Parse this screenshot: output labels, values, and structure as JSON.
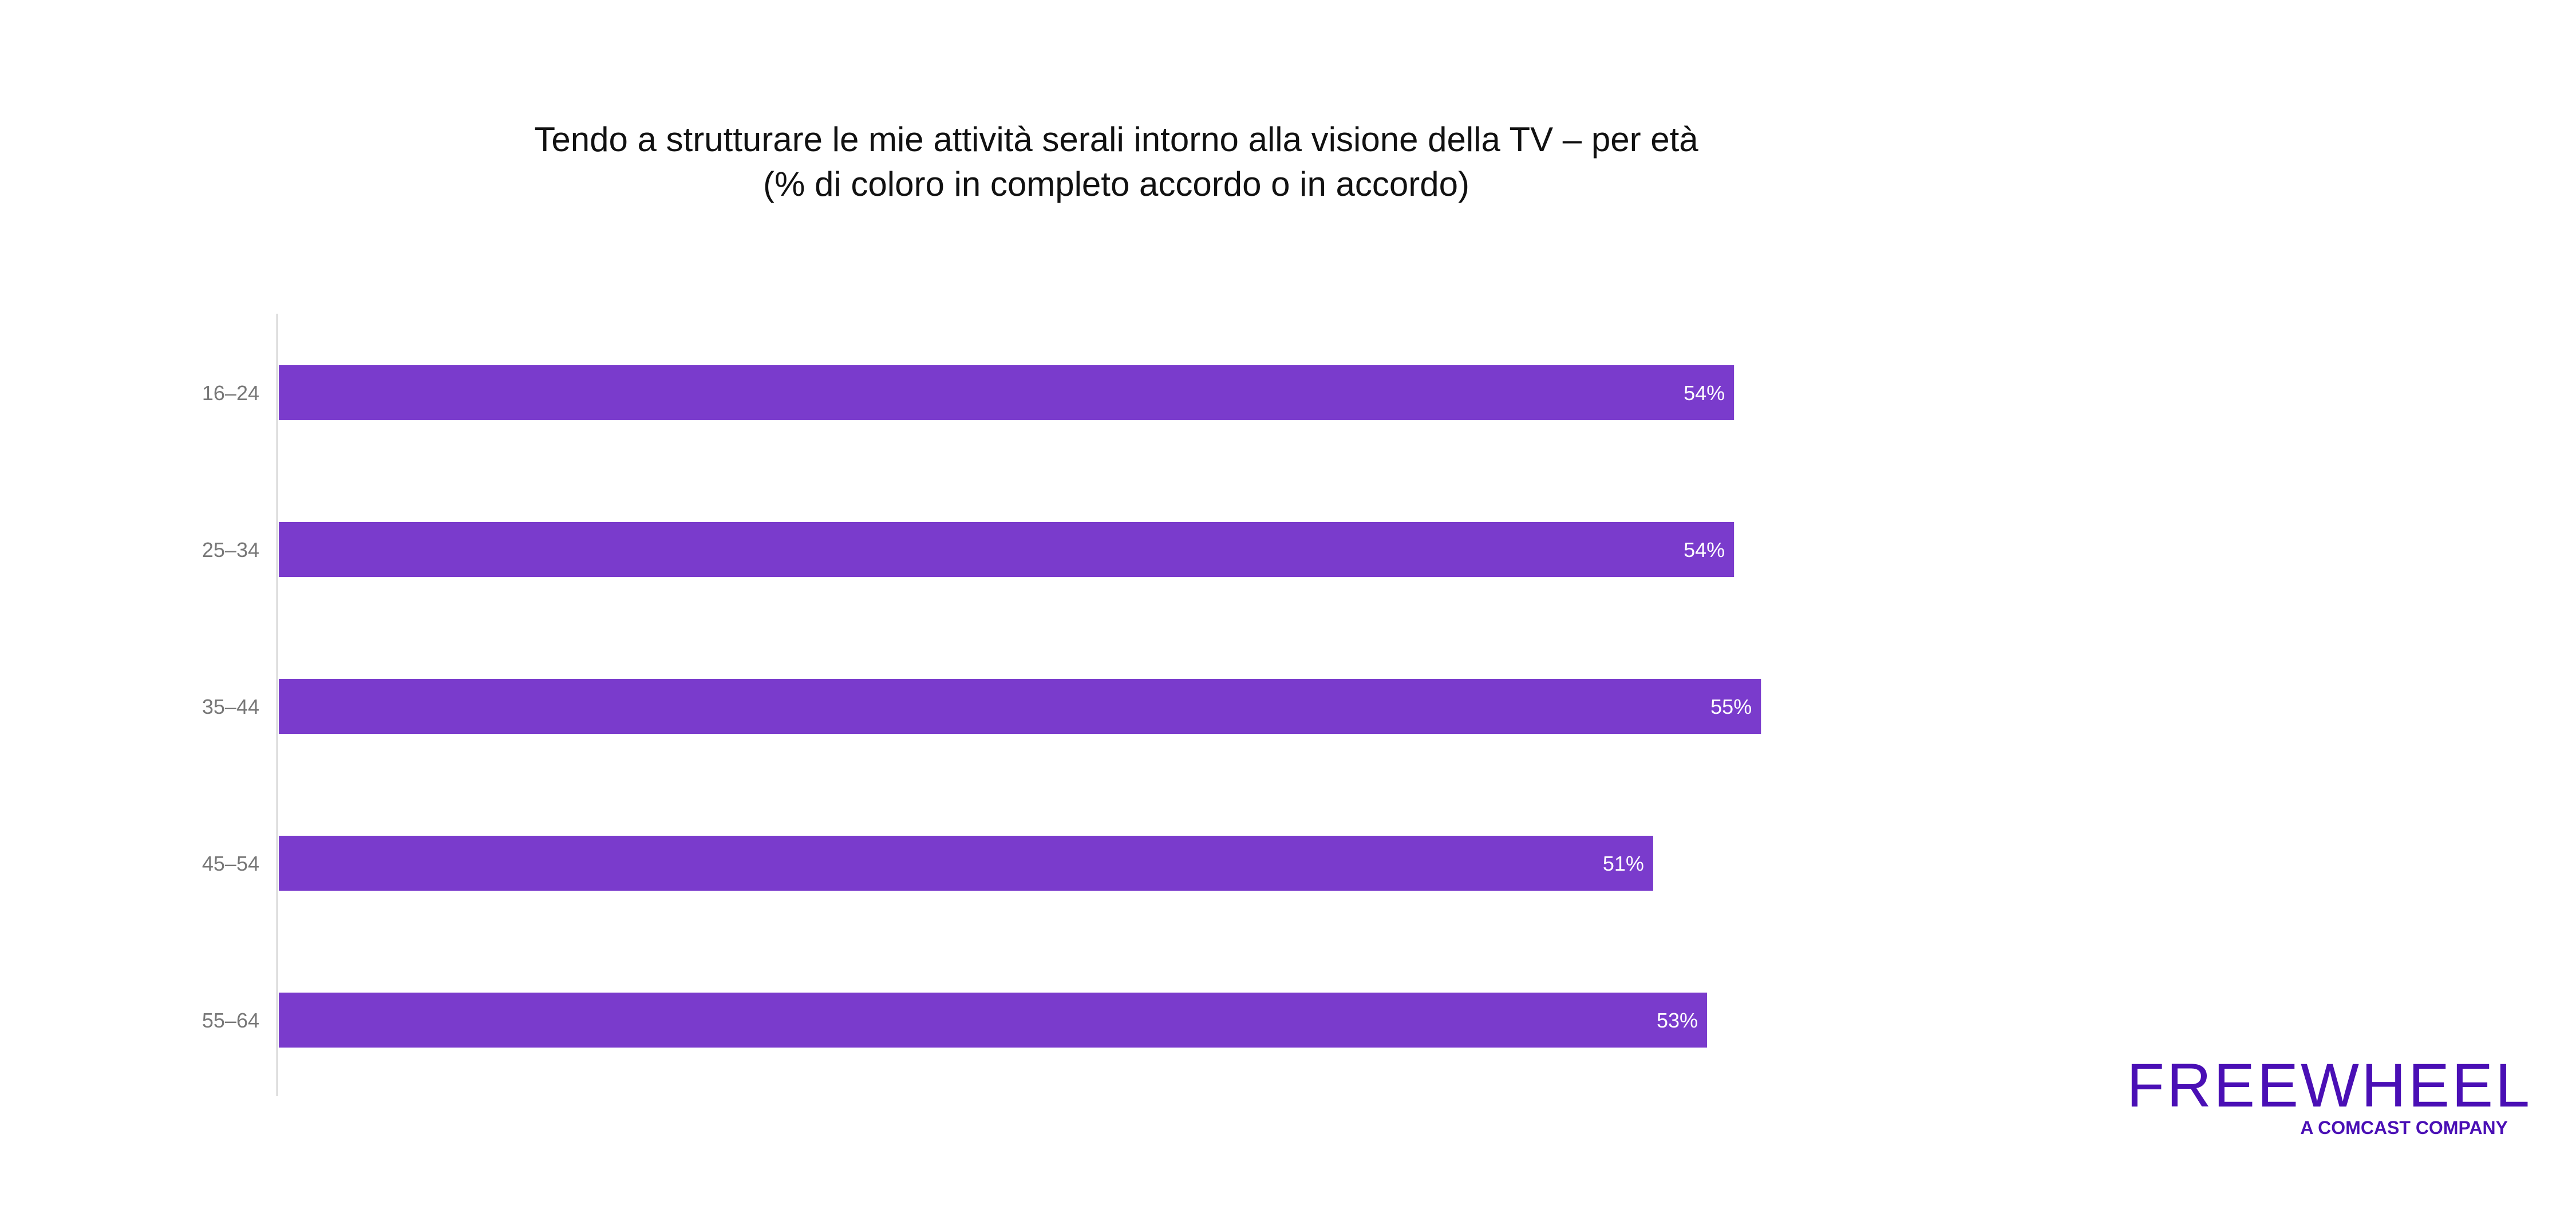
{
  "chart_data": {
    "type": "bar",
    "orientation": "horizontal",
    "title": "Tendo a strutturare le mie attività serali intorno alla visione della TV – per età",
    "subtitle": "(% di coloro in completo accordo o in accordo)",
    "categories": [
      "16–24",
      "25–34",
      "35–44",
      "45–54",
      "55–64"
    ],
    "values": [
      54,
      54,
      55,
      51,
      53
    ],
    "data_labels": [
      "54%",
      "54%",
      "55%",
      "51%",
      "53%"
    ],
    "value_unit": "%",
    "xlim": [
      0,
      65
    ],
    "grid": false,
    "bar_color": "#7a3bcc",
    "data_label_color": "#ffffff",
    "axis_label_color": "#777777"
  },
  "logo": {
    "wordmark": "FREEWHEEL",
    "tagline": "A COMCAST COMPANY",
    "color": "#4a0fb5"
  }
}
